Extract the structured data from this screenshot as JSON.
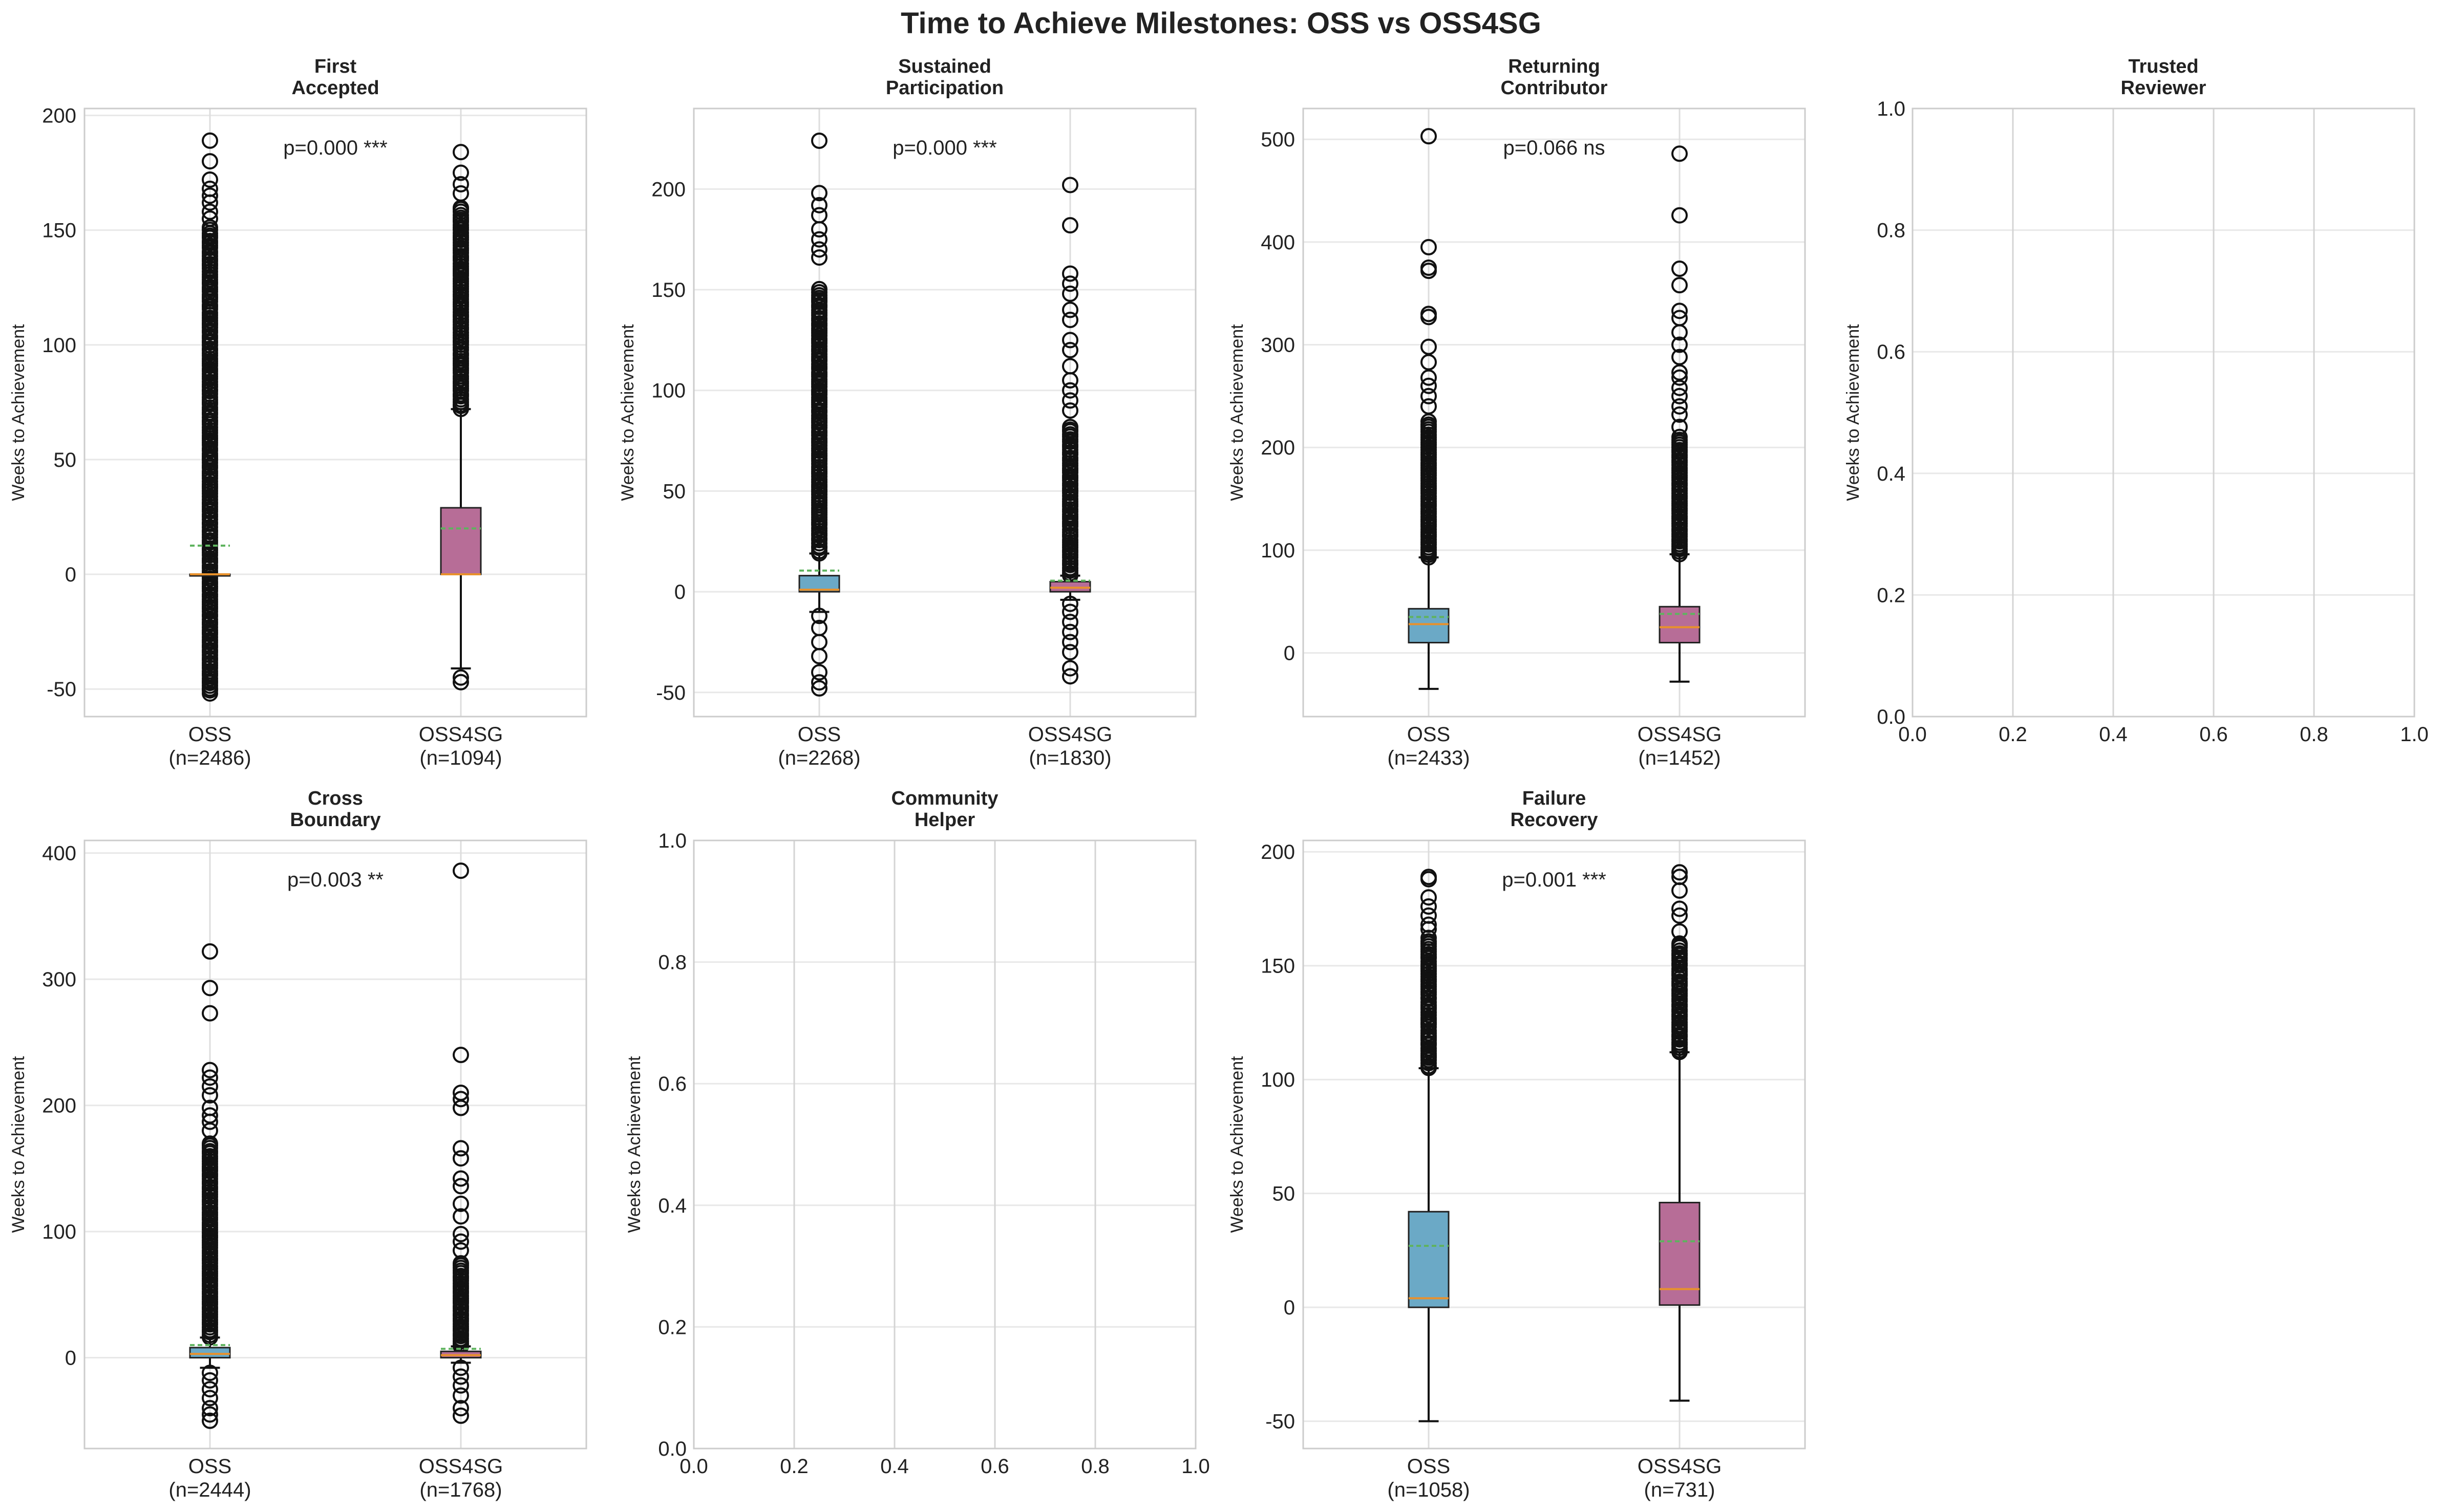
{
  "figure": {
    "suptitle": "Time to Achieve Milestones: OSS vs OSS4SG"
  },
  "colors": {
    "oss_box": "#6ba9c6",
    "oss4sg_box": "#b76d97",
    "median": "#e8912c",
    "mean": "#5fb35f",
    "grid": "#e8e8e8",
    "frame": "#cccccc",
    "text": "#222222"
  },
  "chart_data": [
    {
      "type": "box",
      "title": [
        "First",
        "Accepted"
      ],
      "ylabel": "Weeks to Achievement",
      "ylim": [
        -62,
        203
      ],
      "yticks": [
        -50,
        0,
        50,
        100,
        150,
        200
      ],
      "pvalue": "p=0.000 ***",
      "groups": [
        {
          "name": "OSS",
          "n_label": "(n=2486)",
          "q1": 0,
          "median": 0,
          "q3": 0,
          "mean": 12.5,
          "whisker_low": 0,
          "whisker_high": 0,
          "outlier_range": [
            -52,
            151
          ],
          "outliers": [
            189,
            180,
            172,
            168,
            165,
            162,
            158,
            155
          ]
        },
        {
          "name": "OSS4SG",
          "n_label": "(n=1094)",
          "q1": 0,
          "median": 0,
          "q3": 29,
          "mean": 20,
          "whisker_low": -41,
          "whisker_high": 72,
          "outlier_range": [
            72,
            160
          ],
          "outliers": [
            184,
            175,
            170,
            166,
            -45,
            -47
          ]
        }
      ]
    },
    {
      "type": "box",
      "title": [
        "Sustained",
        "Participation"
      ],
      "ylabel": "Weeks to Achievement",
      "ylim": [
        -62,
        240
      ],
      "yticks": [
        -50,
        0,
        50,
        100,
        150,
        200
      ],
      "pvalue": "p=0.000 ***",
      "groups": [
        {
          "name": "OSS",
          "n_label": "(n=2268)",
          "q1": 0,
          "median": 1,
          "q3": 8,
          "mean": 10.5,
          "whisker_low": -10,
          "whisker_high": 19,
          "outlier_range": [
            19,
            150
          ],
          "outliers": [
            224,
            198,
            192,
            187,
            180,
            175,
            170,
            166,
            -12,
            -18,
            -25,
            -32,
            -40,
            -45,
            -48
          ]
        },
        {
          "name": "OSS4SG",
          "n_label": "(n=1830)",
          "q1": 0,
          "median": 2,
          "q3": 5,
          "mean": 5.5,
          "whisker_low": -4,
          "whisker_high": 8,
          "outlier_range": [
            8,
            82
          ],
          "outliers": [
            202,
            182,
            158,
            153,
            148,
            140,
            135,
            125,
            120,
            112,
            105,
            100,
            95,
            90,
            -6,
            -10,
            -15,
            -20,
            -25,
            -30,
            -38,
            -42
          ]
        }
      ]
    },
    {
      "type": "box",
      "title": [
        "Returning",
        "Contributor"
      ],
      "ylabel": "Weeks to Achievement",
      "ylim": [
        -62,
        530
      ],
      "yticks": [
        0,
        100,
        200,
        300,
        400,
        500
      ],
      "pvalue": "p=0.066 ns",
      "groups": [
        {
          "name": "OSS",
          "n_label": "(n=2433)",
          "q1": 10,
          "median": 28,
          "q3": 43,
          "mean": 35,
          "whisker_low": -35,
          "whisker_high": 93,
          "outlier_range": [
            93,
            225
          ],
          "outliers": [
            503,
            395,
            375,
            372,
            330,
            327,
            298,
            283,
            268,
            260,
            250,
            240
          ]
        },
        {
          "name": "OSS4SG",
          "n_label": "(n=1452)",
          "q1": 10,
          "median": 25,
          "q3": 45,
          "mean": 38,
          "whisker_low": -28,
          "whisker_high": 96,
          "outlier_range": [
            96,
            210
          ],
          "outliers": [
            486,
            426,
            374,
            358,
            333,
            326,
            312,
            300,
            288,
            273,
            268,
            258,
            250,
            240,
            232,
            220
          ]
        }
      ]
    },
    {
      "type": "empty",
      "title": [
        "Trusted",
        "Reviewer"
      ],
      "ylabel": "Weeks to Achievement",
      "xlim": [
        0,
        1
      ],
      "ylim": [
        0,
        1
      ],
      "xticks": [
        "0.0",
        "0.2",
        "0.4",
        "0.6",
        "0.8",
        "1.0"
      ],
      "yticks": [
        "0.0",
        "0.2",
        "0.4",
        "0.6",
        "0.8",
        "1.0"
      ]
    },
    {
      "type": "box",
      "title": [
        "Cross",
        "Boundary"
      ],
      "ylabel": "Weeks to Achievement",
      "ylim": [
        -72,
        410
      ],
      "yticks": [
        0,
        100,
        200,
        300,
        400
      ],
      "pvalue": "p=0.003 **",
      "groups": [
        {
          "name": "OSS",
          "n_label": "(n=2444)",
          "q1": 0,
          "median": 3,
          "q3": 8,
          "mean": 10,
          "whisker_low": -8,
          "whisker_high": 16,
          "outlier_range": [
            16,
            170
          ],
          "outliers": [
            322,
            293,
            273,
            228,
            222,
            215,
            208,
            198,
            192,
            187,
            180,
            -12,
            -18,
            -25,
            -32,
            -40,
            -45,
            -50
          ]
        },
        {
          "name": "OSS4SG",
          "n_label": "(n=1768)",
          "q1": 0,
          "median": 2,
          "q3": 5,
          "mean": 7,
          "whisker_low": -4,
          "whisker_high": 9,
          "outlier_range": [
            9,
            75
          ],
          "outliers": [
            386,
            240,
            210,
            205,
            198,
            166,
            158,
            142,
            136,
            122,
            112,
            98,
            92,
            85,
            -8,
            -15,
            -22,
            -30,
            -40,
            -46
          ]
        }
      ]
    },
    {
      "type": "empty",
      "title": [
        "Community",
        "Helper"
      ],
      "ylabel": "Weeks to Achievement",
      "xlim": [
        0,
        1
      ],
      "ylim": [
        0,
        1
      ],
      "xticks": [
        "0.0",
        "0.2",
        "0.4",
        "0.6",
        "0.8",
        "1.0"
      ],
      "yticks": [
        "0.0",
        "0.2",
        "0.4",
        "0.6",
        "0.8",
        "1.0"
      ]
    },
    {
      "type": "box",
      "title": [
        "Failure",
        "Recovery"
      ],
      "ylabel": "Weeks to Achievement",
      "ylim": [
        -62,
        205
      ],
      "yticks": [
        -50,
        0,
        50,
        100,
        150,
        200
      ],
      "pvalue": "p=0.001 ***",
      "groups": [
        {
          "name": "OSS",
          "n_label": "(n=1058)",
          "q1": 0,
          "median": 4,
          "q3": 42,
          "mean": 27,
          "whisker_low": -50,
          "whisker_high": 105,
          "outlier_range": [
            105,
            162
          ],
          "outliers": [
            189,
            188,
            180,
            176,
            172,
            168,
            166
          ]
        },
        {
          "name": "OSS4SG",
          "n_label": "(n=731)",
          "q1": 1,
          "median": 8,
          "q3": 46,
          "mean": 29,
          "whisker_low": -41,
          "whisker_high": 112,
          "outlier_range": [
            112,
            160
          ],
          "outliers": [
            191,
            189,
            183,
            175,
            172,
            165
          ]
        }
      ]
    }
  ]
}
